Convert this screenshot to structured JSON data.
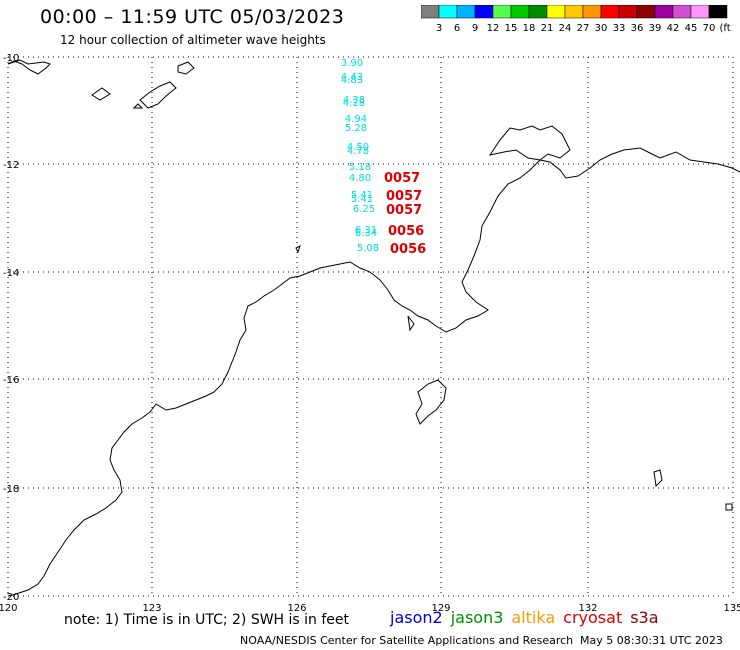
{
  "header": {
    "title": "00:00 – 11:59 UTC 05/03/2023",
    "subtitle": "12 hour collection of altimeter wave heights"
  },
  "colorbar": {
    "labels": [
      "3",
      "6",
      "9",
      "12",
      "15",
      "18",
      "21",
      "24",
      "27",
      "30",
      "33",
      "36",
      "39",
      "42",
      "45",
      "70",
      "(ft)"
    ],
    "colors": [
      "#7f7f7f",
      "#00ffff",
      "#00b4ff",
      "#0000ff",
      "#50ff50",
      "#00c800",
      "#008c00",
      "#ffff00",
      "#ffc800",
      "#ff9600",
      "#ff0000",
      "#c80000",
      "#8c0000",
      "#a000a0",
      "#d250d2",
      "#ff96ff",
      "#000000"
    ]
  },
  "axes": {
    "lat_labels": [
      "-10",
      "-12",
      "-14",
      "-16",
      "-18",
      "-20"
    ],
    "lon_labels": [
      "120",
      "123",
      "126",
      "129",
      "132",
      "135"
    ]
  },
  "wave_heights": [
    {
      "value": "3.90"
    },
    {
      "value": "4.43"
    },
    {
      "value": "4.83"
    },
    {
      "value": "4.38"
    },
    {
      "value": "4.28"
    },
    {
      "value": "4.94"
    },
    {
      "value": "5.28"
    },
    {
      "value": "4.50"
    },
    {
      "value": "4.78"
    },
    {
      "value": "5.18"
    },
    {
      "value": "4.80"
    },
    {
      "value": "5.41"
    },
    {
      "value": "5.41"
    },
    {
      "value": "6.25"
    },
    {
      "value": "6.31"
    },
    {
      "value": "6.34"
    },
    {
      "value": "5.08"
    }
  ],
  "pass_times": [
    "0057",
    "0057",
    "0057",
    "0056",
    "0056"
  ],
  "footer": {
    "note": "note: 1) Time is in UTC; 2) SWH is in feet",
    "satellites": [
      {
        "name": "jason2",
        "color": "#0000dc"
      },
      {
        "name": "jason3",
        "color": "#008c00"
      },
      {
        "name": "altika",
        "color": "#ff9600"
      },
      {
        "name": "cryosat",
        "color": "#dc0000"
      },
      {
        "name": "s3a",
        "color": "#8c0000"
      }
    ],
    "credit": "NOAA/NESDIS Center for Satellite Applications and Research",
    "timestamp": "May  5 08:30:31 UTC 2023"
  },
  "colors": {
    "wave_text": "#00e0e0",
    "pass_text": "#dc0000"
  }
}
